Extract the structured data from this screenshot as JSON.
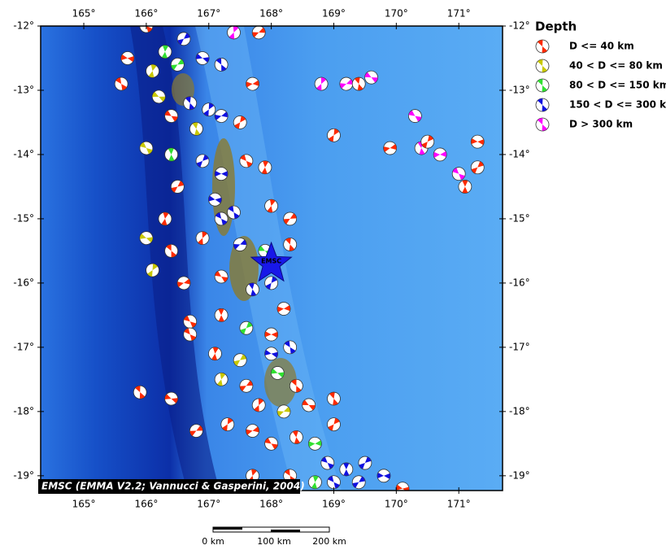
{
  "map": {
    "credit": "EMSC (EMMA V2.2; Vannucci & Gasperini, 2004)",
    "epicenter_label": "EMSC",
    "epicenter": [
      168.0,
      -15.7
    ],
    "xlim": [
      164.31,
      171.7
    ],
    "ylim": [
      -19.23,
      -12.0
    ],
    "xticks": [
      {
        "value": 165,
        "label": "165°"
      },
      {
        "value": 166,
        "label": "166°"
      },
      {
        "value": 167,
        "label": "167°"
      },
      {
        "value": 168,
        "label": "168°"
      },
      {
        "value": 169,
        "label": "169°"
      },
      {
        "value": 170,
        "label": "170°"
      },
      {
        "value": 171,
        "label": "171°"
      }
    ],
    "yticks": [
      {
        "value": -12,
        "label": "-12°"
      },
      {
        "value": -13,
        "label": "-13°"
      },
      {
        "value": -14,
        "label": "-14°"
      },
      {
        "value": -15,
        "label": "-15°"
      },
      {
        "value": -16,
        "label": "-16°"
      },
      {
        "value": -17,
        "label": "-17°"
      },
      {
        "value": -18,
        "label": "-18°"
      },
      {
        "value": -19,
        "label": "-19°"
      }
    ],
    "legend": {
      "title": "Depth",
      "entries": [
        {
          "label": "D <= 40 km",
          "color": "#ff2a00"
        },
        {
          "label": "40 < D <= 80 km",
          "color": "#c8c800"
        },
        {
          "label": "80 < D <= 150 km",
          "color": "#30e030"
        },
        {
          "label": "150 < D <= 300 km",
          "color": "#1010e0"
        },
        {
          "label": "D > 300 km",
          "color": "#ff00ff"
        }
      ]
    },
    "scale_bar": [
      "0 km",
      "100 km",
      "200 km"
    ],
    "events": [
      [
        166.0,
        -12.0,
        0
      ],
      [
        166.3,
        -12.4,
        2
      ],
      [
        166.6,
        -12.2,
        3
      ],
      [
        165.7,
        -12.5,
        0
      ],
      [
        165.6,
        -12.9,
        0
      ],
      [
        166.1,
        -12.7,
        1
      ],
      [
        166.5,
        -12.6,
        2
      ],
      [
        166.9,
        -12.5,
        3
      ],
      [
        167.2,
        -12.6,
        3
      ],
      [
        167.4,
        -12.1,
        4
      ],
      [
        167.8,
        -12.1,
        0
      ],
      [
        166.2,
        -13.1,
        1
      ],
      [
        166.7,
        -13.2,
        3
      ],
      [
        167.0,
        -13.3,
        3
      ],
      [
        167.2,
        -13.4,
        3
      ],
      [
        166.4,
        -13.4,
        0
      ],
      [
        166.8,
        -13.6,
        1
      ],
      [
        167.5,
        -13.5,
        0
      ],
      [
        167.7,
        -12.9,
        0
      ],
      [
        166.0,
        -13.9,
        1
      ],
      [
        166.4,
        -14.0,
        2
      ],
      [
        166.9,
        -14.1,
        3
      ],
      [
        167.2,
        -14.3,
        3
      ],
      [
        167.6,
        -14.1,
        0
      ],
      [
        167.9,
        -14.2,
        0
      ],
      [
        166.5,
        -14.5,
        0
      ],
      [
        167.1,
        -14.7,
        3
      ],
      [
        167.4,
        -14.9,
        3
      ],
      [
        168.0,
        -14.8,
        0
      ],
      [
        168.3,
        -15.0,
        0
      ],
      [
        166.0,
        -15.3,
        1
      ],
      [
        166.4,
        -15.5,
        0
      ],
      [
        166.9,
        -15.3,
        0
      ],
      [
        167.5,
        -15.4,
        3
      ],
      [
        167.9,
        -15.5,
        2
      ],
      [
        168.3,
        -15.4,
        0
      ],
      [
        166.1,
        -15.8,
        1
      ],
      [
        166.6,
        -16.0,
        0
      ],
      [
        167.2,
        -15.9,
        0
      ],
      [
        167.7,
        -16.1,
        3
      ],
      [
        168.0,
        -16.0,
        3
      ],
      [
        168.2,
        -16.4,
        0
      ],
      [
        166.7,
        -16.6,
        0
      ],
      [
        167.2,
        -16.5,
        0
      ],
      [
        167.6,
        -16.7,
        2
      ],
      [
        168.0,
        -16.8,
        0
      ],
      [
        166.7,
        -16.8,
        0
      ],
      [
        167.1,
        -17.1,
        0
      ],
      [
        167.5,
        -17.2,
        1
      ],
      [
        168.0,
        -17.1,
        3
      ],
      [
        168.3,
        -17.0,
        3
      ],
      [
        167.2,
        -17.5,
        1
      ],
      [
        167.6,
        -17.6,
        0
      ],
      [
        168.1,
        -17.4,
        2
      ],
      [
        168.4,
        -17.6,
        0
      ],
      [
        167.8,
        -17.9,
        0
      ],
      [
        168.2,
        -18.0,
        1
      ],
      [
        168.6,
        -17.9,
        0
      ],
      [
        169.0,
        -17.8,
        0
      ],
      [
        167.3,
        -18.2,
        0
      ],
      [
        167.7,
        -18.3,
        0
      ],
      [
        168.0,
        -18.5,
        0
      ],
      [
        168.4,
        -18.4,
        0
      ],
      [
        169.0,
        -18.2,
        0
      ],
      [
        168.7,
        -18.5,
        2
      ],
      [
        168.9,
        -18.8,
        3
      ],
      [
        169.2,
        -18.9,
        3
      ],
      [
        169.5,
        -18.8,
        3
      ],
      [
        169.8,
        -19.0,
        3
      ],
      [
        169.0,
        -19.1,
        3
      ],
      [
        168.7,
        -19.1,
        2
      ],
      [
        169.4,
        -19.1,
        3
      ],
      [
        170.1,
        -19.2,
        0
      ],
      [
        168.3,
        -19.0,
        0
      ],
      [
        167.7,
        -19.0,
        0
      ],
      [
        166.8,
        -18.3,
        0
      ],
      [
        166.4,
        -17.8,
        0
      ],
      [
        165.9,
        -17.7,
        0
      ],
      [
        168.8,
        -12.9,
        4
      ],
      [
        169.2,
        -12.9,
        4
      ],
      [
        169.6,
        -12.8,
        4
      ],
      [
        169.4,
        -12.9,
        0
      ],
      [
        169.0,
        -13.7,
        0
      ],
      [
        169.9,
        -13.9,
        0
      ],
      [
        170.3,
        -13.4,
        4
      ],
      [
        170.4,
        -13.9,
        4
      ],
      [
        170.5,
        -13.8,
        0
      ],
      [
        170.7,
        -14.0,
        4
      ],
      [
        171.0,
        -14.3,
        4
      ],
      [
        171.1,
        -14.5,
        0
      ],
      [
        171.3,
        -14.2,
        0
      ],
      [
        171.3,
        -13.8,
        0
      ],
      [
        167.2,
        -15.0,
        3
      ],
      [
        166.3,
        -15.0,
        0
      ]
    ]
  }
}
